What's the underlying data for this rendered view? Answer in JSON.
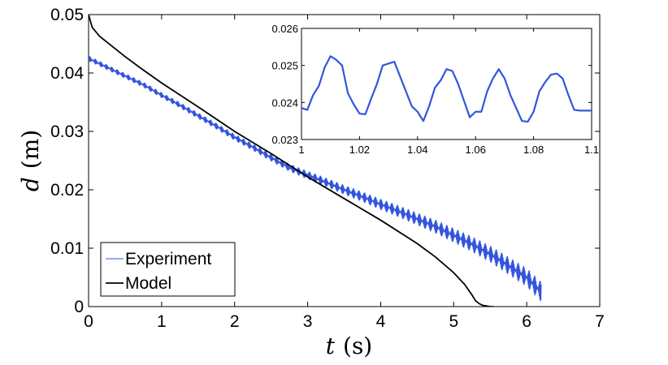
{
  "chart_data": [
    {
      "type": "line",
      "panel": "main",
      "xlabel_var": "t",
      "xlabel_unit": "(s)",
      "ylabel_var": "d",
      "ylabel_unit": "(m)",
      "xlim": [
        0,
        7
      ],
      "ylim": [
        0,
        0.05
      ],
      "xticks": [
        0,
        1,
        2,
        3,
        4,
        5,
        6,
        7
      ],
      "yticks": [
        0,
        0.01,
        0.02,
        0.03,
        0.04,
        0.05
      ],
      "xtick_labels": [
        "0",
        "1",
        "2",
        "3",
        "4",
        "5",
        "6",
        "7"
      ],
      "ytick_labels": [
        "0",
        "0.01",
        "0.02",
        "0.03",
        "0.04",
        "0.05"
      ],
      "legend": {
        "placement": "bottom-left",
        "entries": [
          {
            "name": "Experiment",
            "color": "#3355dd"
          },
          {
            "name": "Model",
            "color": "#000000"
          }
        ]
      },
      "series": [
        {
          "name": "Experiment",
          "color": "#3355dd",
          "x": [
            0.0,
            0.25,
            0.5,
            0.75,
            1.0,
            1.25,
            1.5,
            1.75,
            2.0,
            2.25,
            2.5,
            2.75,
            3.0,
            3.25,
            3.5,
            3.75,
            4.0,
            4.25,
            4.5,
            4.75,
            5.0,
            5.25,
            5.5,
            5.75,
            6.0,
            6.2
          ],
          "y": [
            0.0425,
            0.041,
            0.0395,
            0.038,
            0.0362,
            0.0345,
            0.0327,
            0.0309,
            0.029,
            0.0273,
            0.0255,
            0.0238,
            0.0225,
            0.0213,
            0.02,
            0.0188,
            0.0175,
            0.0163,
            0.015,
            0.0137,
            0.0122,
            0.0107,
            0.009,
            0.007,
            0.005,
            0.0025
          ],
          "oscillation_amplitude": 0.0008
        },
        {
          "name": "Model",
          "color": "#000000",
          "x": [
            0.0,
            0.05,
            0.15,
            0.3,
            0.5,
            0.75,
            1.0,
            1.5,
            2.0,
            2.5,
            3.0,
            3.5,
            4.0,
            4.5,
            4.75,
            5.0,
            5.15,
            5.25,
            5.3,
            5.35,
            5.4,
            5.5,
            5.55
          ],
          "y": [
            0.05,
            0.0478,
            0.0463,
            0.0448,
            0.0428,
            0.0405,
            0.0383,
            0.0342,
            0.03,
            0.0262,
            0.0222,
            0.0185,
            0.0148,
            0.0108,
            0.0085,
            0.0058,
            0.0038,
            0.002,
            0.001,
            0.0005,
            0.0002,
            0.0,
            0.0
          ]
        }
      ]
    },
    {
      "type": "line",
      "panel": "inset",
      "xlim": [
        1,
        1.1
      ],
      "ylim": [
        0.023,
        0.026
      ],
      "xticks": [
        1,
        1.02,
        1.04,
        1.06,
        1.08,
        1.1
      ],
      "yticks": [
        0.023,
        0.024,
        0.025,
        0.026
      ],
      "xtick_labels": [
        "1",
        "1.02",
        "1.04",
        "1.06",
        "1.08",
        "1.1"
      ],
      "ytick_labels": [
        "0.023",
        "0.024",
        "0.025",
        "0.026"
      ],
      "series": [
        {
          "name": "Experiment",
          "color": "#3355dd",
          "x": [
            1.0,
            1.002,
            1.004,
            1.006,
            1.008,
            1.01,
            1.012,
            1.014,
            1.016,
            1.018,
            1.02,
            1.022,
            1.024,
            1.026,
            1.028,
            1.03,
            1.032,
            1.034,
            1.036,
            1.038,
            1.04,
            1.042,
            1.044,
            1.046,
            1.048,
            1.05,
            1.052,
            1.054,
            1.056,
            1.058,
            1.06,
            1.062,
            1.064,
            1.066,
            1.068,
            1.07,
            1.072,
            1.074,
            1.076,
            1.078,
            1.08,
            1.082,
            1.084,
            1.086,
            1.088,
            1.09,
            1.092,
            1.094,
            1.096,
            1.098,
            1.1
          ],
          "y": [
            0.02385,
            0.0238,
            0.0242,
            0.02445,
            0.02495,
            0.02525,
            0.02515,
            0.025,
            0.02425,
            0.02395,
            0.0237,
            0.02368,
            0.0241,
            0.0245,
            0.025,
            0.02505,
            0.0251,
            0.0247,
            0.0243,
            0.0239,
            0.02375,
            0.0235,
            0.0239,
            0.0244,
            0.0246,
            0.0249,
            0.02485,
            0.0245,
            0.02405,
            0.0236,
            0.02375,
            0.02375,
            0.0243,
            0.02465,
            0.0249,
            0.02465,
            0.0242,
            0.02385,
            0.0235,
            0.02348,
            0.02375,
            0.0243,
            0.02455,
            0.02475,
            0.02478,
            0.02465,
            0.0242,
            0.0238,
            0.02378,
            0.02378,
            0.02378
          ]
        }
      ]
    }
  ]
}
